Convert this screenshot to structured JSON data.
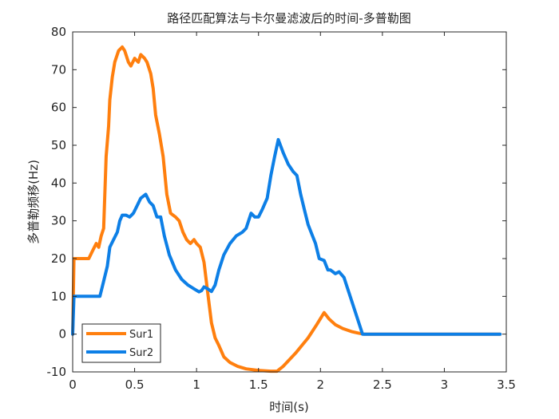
{
  "chart_data": {
    "type": "line",
    "title": "路径匹配算法与卡尔曼滤波后的时间-多普勒图",
    "xlabel": "时间(s)",
    "ylabel": "多普勒频移(Hz)",
    "xlim": [
      0,
      3.5
    ],
    "ylim": [
      -10,
      80
    ],
    "xticks": [
      0,
      0.5,
      1,
      1.5,
      2,
      2.5,
      3,
      3.5
    ],
    "xtick_labels": [
      "0",
      "0.5",
      "1",
      "1.5",
      "2",
      "2.5",
      "3",
      "3.5"
    ],
    "yticks": [
      -10,
      0,
      10,
      20,
      30,
      40,
      50,
      60,
      70,
      80
    ],
    "ytick_labels": [
      "-10",
      "0",
      "10",
      "20",
      "30",
      "40",
      "50",
      "60",
      "70",
      "80"
    ],
    "grid": false,
    "legend_position": "bottom-left",
    "series": [
      {
        "name": "Sur1",
        "color": "#FF7F0E",
        "points": [
          [
            0,
            0
          ],
          [
            0.01,
            20
          ],
          [
            0.05,
            20
          ],
          [
            0.13,
            20
          ],
          [
            0.16,
            22
          ],
          [
            0.19,
            24
          ],
          [
            0.21,
            23
          ],
          [
            0.23,
            26
          ],
          [
            0.25,
            28
          ],
          [
            0.27,
            47
          ],
          [
            0.29,
            55
          ],
          [
            0.3,
            62
          ],
          [
            0.32,
            68
          ],
          [
            0.34,
            72
          ],
          [
            0.37,
            75
          ],
          [
            0.4,
            76
          ],
          [
            0.42,
            75
          ],
          [
            0.45,
            72
          ],
          [
            0.47,
            71
          ],
          [
            0.5,
            73
          ],
          [
            0.53,
            72
          ],
          [
            0.55,
            74
          ],
          [
            0.58,
            73
          ],
          [
            0.6,
            72
          ],
          [
            0.63,
            69
          ],
          [
            0.65,
            65
          ],
          [
            0.67,
            58
          ],
          [
            0.7,
            53
          ],
          [
            0.73,
            47
          ],
          [
            0.76,
            37
          ],
          [
            0.79,
            32
          ],
          [
            0.83,
            31
          ],
          [
            0.86,
            30
          ],
          [
            0.89,
            27
          ],
          [
            0.92,
            25
          ],
          [
            0.95,
            24
          ],
          [
            0.98,
            25
          ],
          [
            1.0,
            24
          ],
          [
            1.03,
            23
          ],
          [
            1.06,
            19
          ],
          [
            1.09,
            11
          ],
          [
            1.12,
            3
          ],
          [
            1.15,
            -1
          ],
          [
            1.18,
            -3
          ],
          [
            1.22,
            -6
          ],
          [
            1.27,
            -7.5
          ],
          [
            1.33,
            -8.5
          ],
          [
            1.4,
            -9.2
          ],
          [
            1.5,
            -9.6
          ],
          [
            1.6,
            -9.8
          ],
          [
            1.65,
            -9.8
          ],
          [
            1.7,
            -8.5
          ],
          [
            1.8,
            -5
          ],
          [
            1.9,
            -1
          ],
          [
            1.97,
            2.5
          ],
          [
            2.03,
            5.7
          ],
          [
            2.07,
            4
          ],
          [
            2.12,
            2.5
          ],
          [
            2.18,
            1.5
          ],
          [
            2.25,
            0.7
          ],
          [
            2.3,
            0.3
          ],
          [
            2.35,
            0
          ],
          [
            3.45,
            0
          ]
        ]
      },
      {
        "name": "Sur2",
        "color": "#0D7FE6",
        "points": [
          [
            0,
            0
          ],
          [
            0.01,
            10
          ],
          [
            0.05,
            10
          ],
          [
            0.1,
            10
          ],
          [
            0.15,
            10
          ],
          [
            0.22,
            10
          ],
          [
            0.25,
            14
          ],
          [
            0.28,
            18
          ],
          [
            0.3,
            23
          ],
          [
            0.33,
            25
          ],
          [
            0.36,
            27
          ],
          [
            0.38,
            30
          ],
          [
            0.4,
            31.5
          ],
          [
            0.43,
            31.5
          ],
          [
            0.46,
            31
          ],
          [
            0.49,
            32
          ],
          [
            0.52,
            34
          ],
          [
            0.55,
            36
          ],
          [
            0.59,
            37
          ],
          [
            0.62,
            35
          ],
          [
            0.65,
            34
          ],
          [
            0.68,
            31
          ],
          [
            0.71,
            31
          ],
          [
            0.74,
            26
          ],
          [
            0.78,
            21
          ],
          [
            0.83,
            17
          ],
          [
            0.88,
            14.5
          ],
          [
            0.93,
            13
          ],
          [
            0.98,
            12
          ],
          [
            1.02,
            11.2
          ],
          [
            1.04,
            11.5
          ],
          [
            1.06,
            12.5
          ],
          [
            1.09,
            12
          ],
          [
            1.12,
            11.3
          ],
          [
            1.15,
            13
          ],
          [
            1.18,
            17
          ],
          [
            1.22,
            21
          ],
          [
            1.27,
            24
          ],
          [
            1.32,
            26
          ],
          [
            1.37,
            27
          ],
          [
            1.4,
            28
          ],
          [
            1.44,
            32
          ],
          [
            1.47,
            31
          ],
          [
            1.5,
            31
          ],
          [
            1.53,
            33
          ],
          [
            1.57,
            36
          ],
          [
            1.6,
            42
          ],
          [
            1.63,
            47
          ],
          [
            1.66,
            51.5
          ],
          [
            1.7,
            48
          ],
          [
            1.74,
            45
          ],
          [
            1.78,
            43
          ],
          [
            1.81,
            42
          ],
          [
            1.84,
            37
          ],
          [
            1.87,
            33
          ],
          [
            1.9,
            29
          ],
          [
            1.93,
            26.5
          ],
          [
            1.96,
            24
          ],
          [
            1.99,
            20
          ],
          [
            2.03,
            19.5
          ],
          [
            2.06,
            17
          ],
          [
            2.08,
            17
          ],
          [
            2.12,
            16
          ],
          [
            2.15,
            16.5
          ],
          [
            2.19,
            15
          ],
          [
            2.22,
            12
          ],
          [
            2.26,
            8
          ],
          [
            2.3,
            4
          ],
          [
            2.34,
            0
          ],
          [
            3.45,
            0
          ]
        ]
      }
    ]
  }
}
